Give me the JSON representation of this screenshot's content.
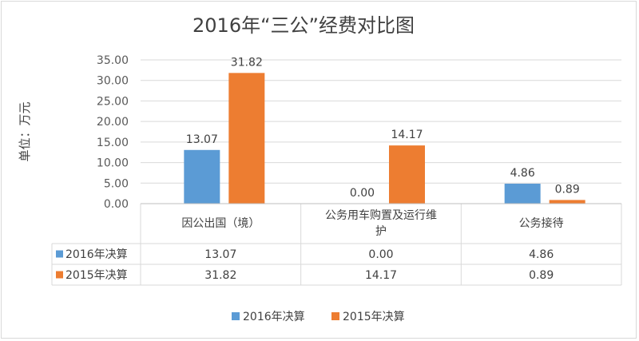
{
  "chart_data": {
    "type": "bar",
    "title": "2016年“三公”经费对比图",
    "ylabel": "单位：万元",
    "xlabel": "",
    "categories": [
      "因公出国（境）",
      "公务用车购置及运行维护",
      "公务接待"
    ],
    "category_lines": [
      [
        "因公出国（境）"
      ],
      [
        "公务用车购置及运行维",
        "护"
      ],
      [
        "公务接待"
      ]
    ],
    "series": [
      {
        "name": "2016年决算",
        "values": [
          13.07,
          0.0,
          4.86
        ],
        "labels": [
          "13.07",
          "0.00",
          "4.86"
        ],
        "color": "#5b9bd5"
      },
      {
        "name": "2015年决算",
        "values": [
          31.82,
          14.17,
          0.89
        ],
        "labels": [
          "31.82",
          "14.17",
          "0.89"
        ],
        "color": "#ed7d31"
      }
    ],
    "ylim": [
      0,
      35
    ],
    "yticks": [
      "0.00",
      "5.00",
      "10.00",
      "15.00",
      "20.00",
      "25.00",
      "30.00",
      "35.00"
    ],
    "grid": true,
    "data_table": true,
    "legend_position": "bottom"
  }
}
